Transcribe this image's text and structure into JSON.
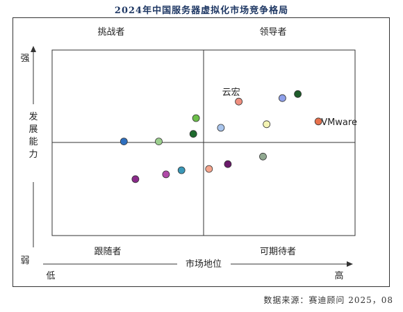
{
  "title": "2024年中国服务器虚拟化市场竞争格局",
  "source": "数据来源：赛迪顾问  2025，08",
  "chart_data": {
    "type": "scatter",
    "quadrants": {
      "top_left": "挑战者",
      "top_right": "领导者",
      "bottom_left": "跟随者",
      "bottom_right": "可期待者"
    },
    "x_axis": {
      "label": "市场地位",
      "low": "低",
      "high": "高"
    },
    "y_axis": {
      "label": "发展能力",
      "low": "弱",
      "high": "强"
    },
    "xlim": [
      0,
      10
    ],
    "ylim": [
      0,
      10
    ],
    "points": [
      {
        "x": 2.37,
        "y": 5.07,
        "color": "#2e6fbf",
        "label": ""
      },
      {
        "x": 3.52,
        "y": 5.07,
        "color": "#9ccf8e",
        "label": ""
      },
      {
        "x": 4.66,
        "y": 5.48,
        "color": "#1e6b2e",
        "label": ""
      },
      {
        "x": 4.75,
        "y": 6.33,
        "color": "#6cbf4a",
        "label": ""
      },
      {
        "x": 5.57,
        "y": 5.81,
        "color": "#a8c4ec",
        "label": ""
      },
      {
        "x": 6.16,
        "y": 7.22,
        "color": "#ef8f7f",
        "label": "云宏"
      },
      {
        "x": 7.08,
        "y": 6.0,
        "color": "#f4f4b4",
        "label": ""
      },
      {
        "x": 7.6,
        "y": 7.41,
        "color": "#8ea0ea",
        "label": ""
      },
      {
        "x": 8.11,
        "y": 7.63,
        "color": "#1e5c2a",
        "label": ""
      },
      {
        "x": 8.79,
        "y": 6.15,
        "color": "#e8714c",
        "label": "VMware"
      },
      {
        "x": 6.96,
        "y": 4.26,
        "color": "#90a890",
        "label": ""
      },
      {
        "x": 5.8,
        "y": 3.85,
        "color": "#6a1a6a",
        "label": ""
      },
      {
        "x": 5.18,
        "y": 3.59,
        "color": "#f4a48c",
        "label": ""
      },
      {
        "x": 4.27,
        "y": 3.52,
        "color": "#3a98b8",
        "label": ""
      },
      {
        "x": 3.76,
        "y": 3.3,
        "color": "#b04aa8",
        "label": ""
      },
      {
        "x": 2.75,
        "y": 3.04,
        "color": "#8a2a8a",
        "label": ""
      }
    ],
    "grid": false
  }
}
